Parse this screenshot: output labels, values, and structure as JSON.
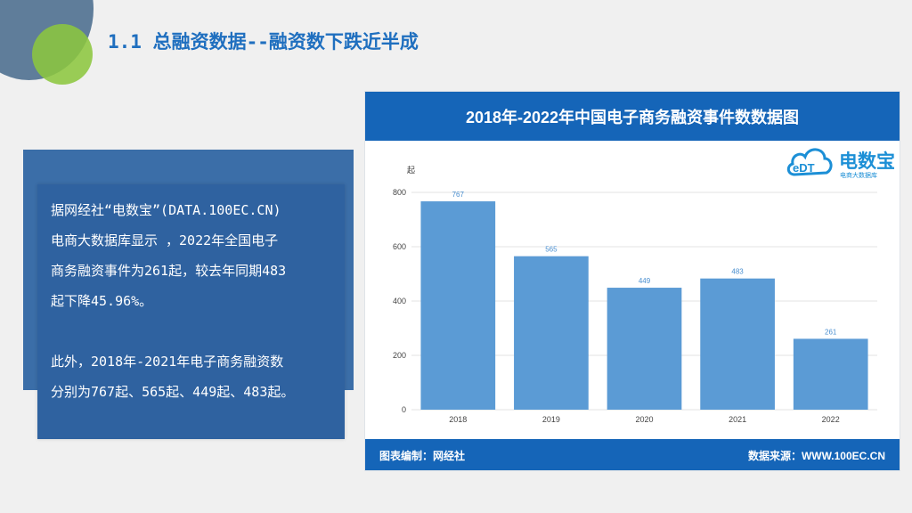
{
  "slide": {
    "title": "1.1 总融资数据--融资数下跌近半成"
  },
  "textbox": {
    "lines": [
      "据网经社“电数宝”(DATA.100EC.CN)",
      "电商大数据库显示 ，2022年全国电子",
      "商务融资事件为261起，较去年同期483",
      "起下降45.96%。"
    ],
    "lines2": [
      "此外，2018年-2021年电子商务融资数",
      "分别为767起、565起、449起、483起。"
    ]
  },
  "chart_panel": {
    "header": "2018年-2022年中国电子商务融资事件数数据图",
    "footer_left": "图表编制：网经社",
    "footer_right": "数据来源：WWW.100EC.CN",
    "logo_text": "电数宝",
    "logo_letters": "eDT",
    "logo_sub": "电商大数据库"
  },
  "colors": {
    "bar": "#5b9bd5",
    "header": "#1565b8",
    "title": "#1f6fbf",
    "textbox": "#2f62a0"
  },
  "chart_data": {
    "type": "bar",
    "categories": [
      "2018",
      "2019",
      "2020",
      "2021",
      "2022"
    ],
    "values": [
      767,
      565,
      449,
      483,
      261
    ],
    "ylabel": "起",
    "ylim": [
      0,
      800
    ],
    "yticks": [
      0,
      200,
      400,
      600,
      800
    ],
    "grid": true,
    "data_labels": true
  }
}
